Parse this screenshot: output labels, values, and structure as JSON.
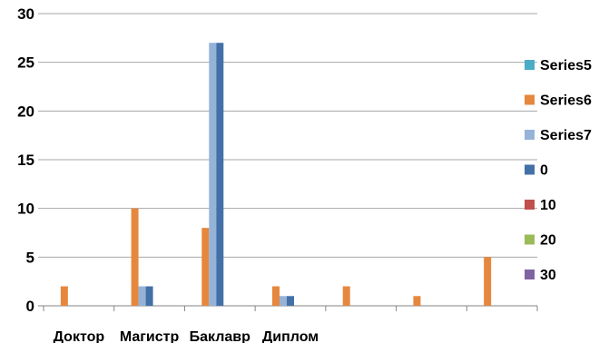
{
  "chart_data": {
    "type": "bar",
    "title": "",
    "xlabel": "",
    "ylabel": "",
    "ylim": [
      0,
      30
    ],
    "yticks": [
      0,
      5,
      10,
      15,
      20,
      25,
      30
    ],
    "grid": true,
    "legend_position": "right",
    "categories": [
      "Доктор",
      "Магистр",
      "Баклавр",
      "Диплом",
      "",
      "",
      ""
    ],
    "series": [
      {
        "name": "Series5",
        "color": "#4bacc6",
        "values": [
          0,
          0,
          0,
          0,
          0,
          0,
          0
        ]
      },
      {
        "name": "Series6",
        "color": "#e6873e",
        "values": [
          2,
          10,
          8,
          2,
          2,
          1,
          5
        ]
      },
      {
        "name": "Series7",
        "color": "#95b3d7",
        "values": [
          0,
          2,
          27,
          1,
          0,
          0,
          0
        ]
      },
      {
        "name": "0",
        "color": "#4470a8",
        "values": [
          0,
          2,
          27,
          1,
          0,
          0,
          0
        ]
      },
      {
        "name": "10",
        "color": "#c0504d",
        "values": [
          0,
          0,
          0,
          0,
          0,
          0,
          0
        ]
      },
      {
        "name": "20",
        "color": "#9bbb59",
        "values": [
          0,
          0,
          0,
          0,
          0,
          0,
          0
        ]
      },
      {
        "name": "30",
        "color": "#8064a2",
        "values": [
          0,
          0,
          0,
          0,
          0,
          0,
          0
        ]
      }
    ]
  }
}
